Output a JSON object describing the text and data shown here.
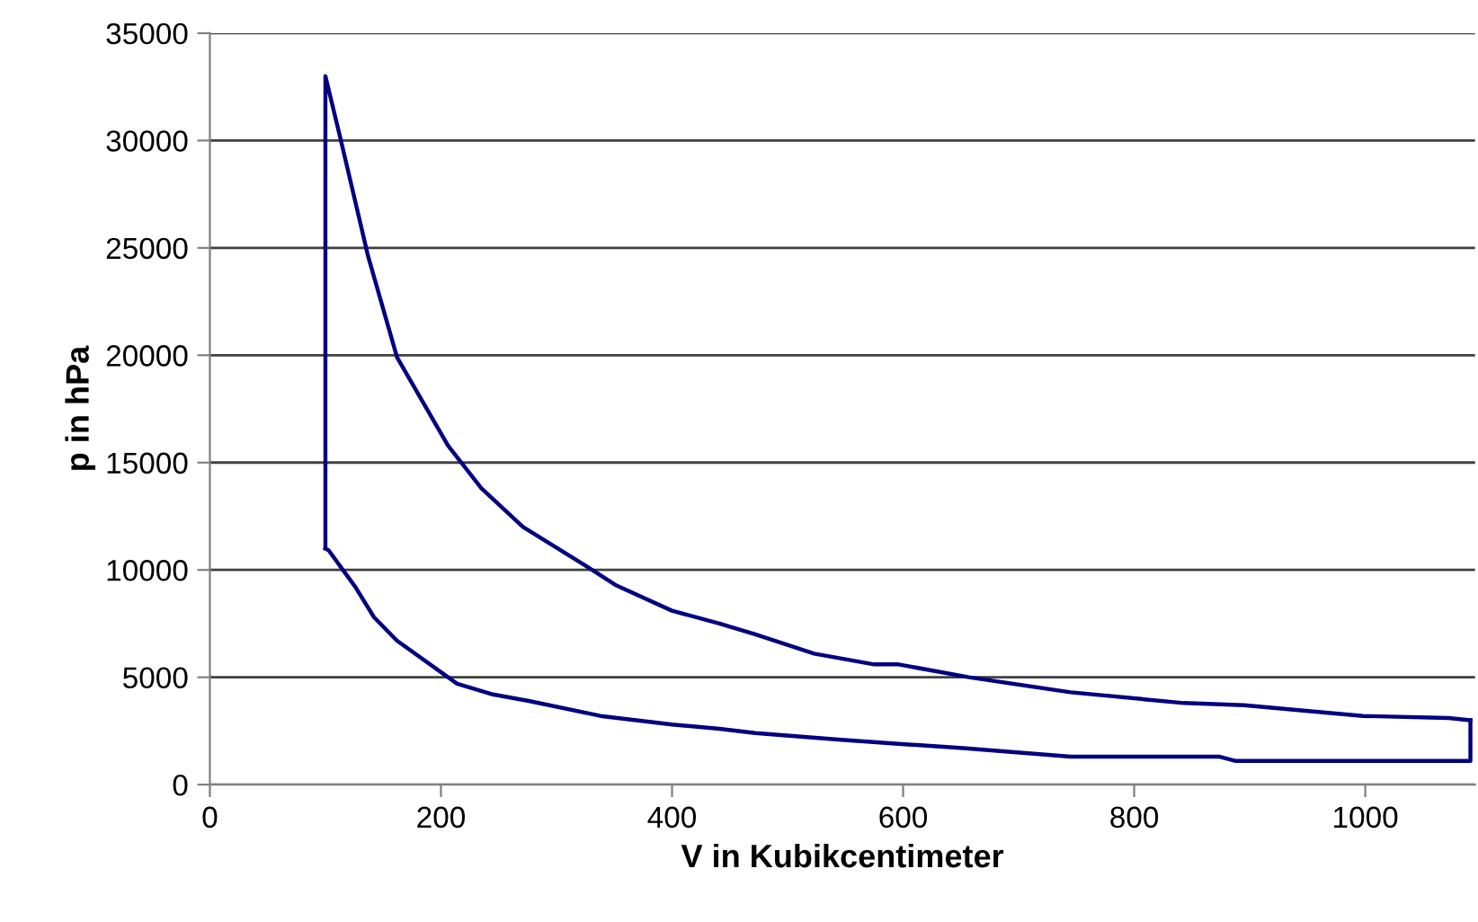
{
  "chart_data": {
    "type": "line",
    "xlabel": "V in Kubikcentimeter",
    "ylabel": "p in hPa",
    "series": [
      {
        "color": "#000080",
        "x": [
          100,
          100,
          113,
          137,
          162,
          206,
          235,
          271,
          325,
          351,
          400,
          441,
          472,
          523,
          575,
          596,
          657,
          745,
          843,
          895,
          998,
          1072,
          1091
        ],
        "values": [
          11000,
          33000,
          30100,
          24600,
          19900,
          15800,
          13800,
          12000,
          10200,
          9300,
          8100,
          7500,
          7000,
          6100,
          5600,
          5600,
          5000,
          4300,
          3800,
          3700,
          3200,
          3100,
          3000
        ]
      },
      {
        "color": "#000080",
        "x": [
          100,
          103,
          126,
          142,
          162,
          214,
          245,
          276,
          338,
          400,
          441,
          472,
          544,
          596,
          652,
          745,
          874,
          888,
          972,
          1091,
          1091
        ],
        "values": [
          11000,
          10900,
          9200,
          7800,
          6700,
          4700,
          4200,
          3900,
          3200,
          2800,
          2600,
          2400,
          2100,
          1900,
          1700,
          1300,
          1300,
          1100,
          1100,
          1100,
          3000
        ]
      }
    ],
    "xlim": [
      0,
      1095
    ],
    "ylim": [
      0,
      35000
    ],
    "xticks": [
      0,
      200,
      400,
      600,
      800,
      1000
    ],
    "yticks": [
      0,
      5000,
      10000,
      15000,
      20000,
      25000,
      30000,
      35000
    ],
    "grid": "y",
    "legend": false,
    "marker": "none",
    "line_style": "solid"
  }
}
